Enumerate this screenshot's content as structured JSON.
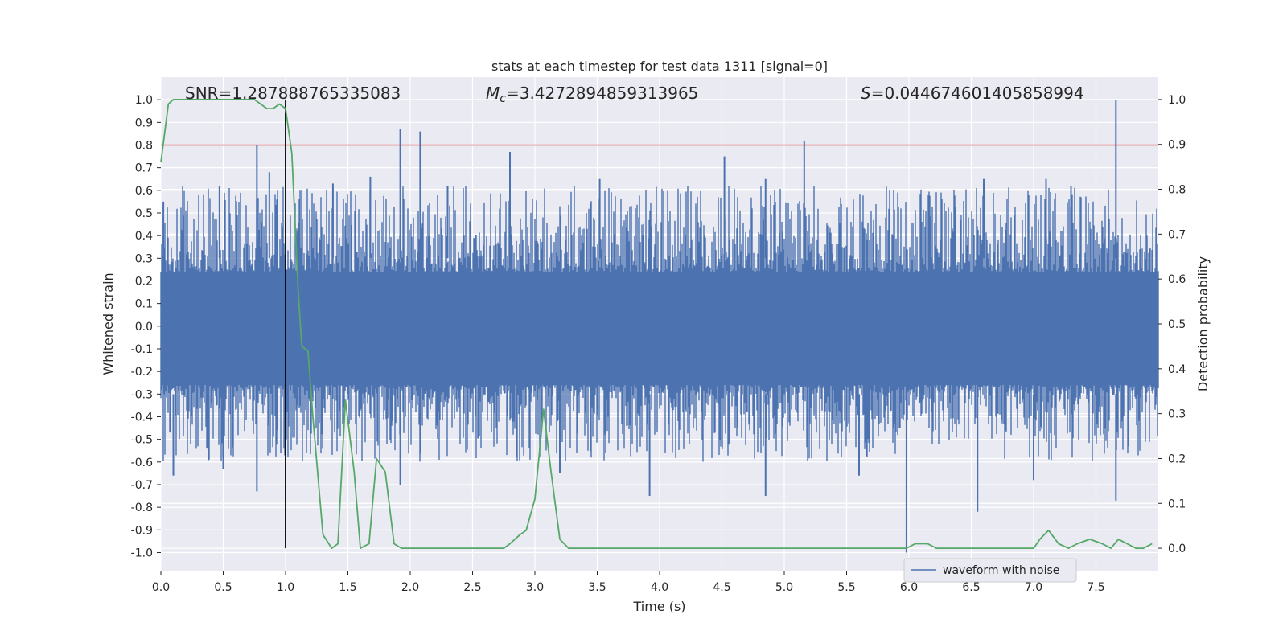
{
  "chart_data": {
    "type": "line",
    "title": "stats at each timestep for test data 1311 [signal=0]",
    "xlabel": "Time (s)",
    "ylabel_left": "Whitened strain",
    "ylabel_right": "Detection probability",
    "xlim": [
      0.0,
      8.0
    ],
    "ylim_left": [
      -1.08,
      1.1
    ],
    "ylim_right": [
      -0.05,
      1.05
    ],
    "grid": true,
    "xticks": [
      "0.0",
      "0.5",
      "1.0",
      "1.5",
      "2.0",
      "2.5",
      "3.0",
      "3.5",
      "4.0",
      "4.5",
      "5.0",
      "5.5",
      "6.0",
      "6.5",
      "7.0",
      "7.5"
    ],
    "yticks_left": [
      "1.0",
      "0.9",
      "0.8",
      "0.7",
      "0.6",
      "0.5",
      "0.4",
      "0.3",
      "0.2",
      "0.1",
      "0.0",
      "-0.1",
      "-0.2",
      "-0.3",
      "-0.4",
      "-0.5",
      "-0.6",
      "-0.7",
      "-0.8",
      "-0.9",
      "-1.0"
    ],
    "yticks_right": [
      "1.0",
      "0.9",
      "0.8",
      "0.7",
      "0.6",
      "0.5",
      "0.4",
      "0.3",
      "0.2",
      "0.1",
      "0.0"
    ],
    "annotations": {
      "snr": "SNR=1.287888765335083",
      "mc_symbol": "M",
      "mc_sub": "c",
      "mc_value": "=3.4272894859313965",
      "s_symbol": "S",
      "s_value": "=0.0446746014058589​94"
    },
    "threshold": {
      "name": "threshold",
      "axis": "left",
      "value": 0.8,
      "color": "#c44e52"
    },
    "vline": {
      "name": "marker",
      "x": 1.0,
      "color": "#000000"
    },
    "waveform": {
      "name": "waveform with noise",
      "color": "#4c72b0",
      "envelope_note": "dense whitened noise approximately within ±0.4 with spikes",
      "spikes_up": [
        [
          0.77,
          0.8
        ],
        [
          0.87,
          0.68
        ],
        [
          1.92,
          0.87
        ],
        [
          2.08,
          0.86
        ],
        [
          2.8,
          0.77
        ],
        [
          4.52,
          0.75
        ],
        [
          5.16,
          0.82
        ],
        [
          6.6,
          0.65
        ],
        [
          7.66,
          1.0
        ],
        [
          1.38,
          0.63
        ],
        [
          1.68,
          0.66
        ],
        [
          3.52,
          0.65
        ],
        [
          4.85,
          0.65
        ],
        [
          7.3,
          0.62
        ],
        [
          0.02,
          0.55
        ],
        [
          0.47,
          0.62
        ],
        [
          2.3,
          0.62
        ],
        [
          7.1,
          0.65
        ]
      ],
      "spikes_down": [
        [
          0.1,
          -0.66
        ],
        [
          0.77,
          -0.73
        ],
        [
          1.92,
          -0.7
        ],
        [
          3.92,
          -0.75
        ],
        [
          4.85,
          -0.75
        ],
        [
          5.98,
          -1.0
        ],
        [
          6.55,
          -0.82
        ],
        [
          7.66,
          -0.77
        ],
        [
          0.5,
          -0.63
        ],
        [
          3.2,
          -0.65
        ],
        [
          5.6,
          -0.66
        ],
        [
          7.0,
          -0.68
        ]
      ]
    },
    "probability": {
      "name": "detection probability",
      "axis": "right",
      "color": "#55a868",
      "x": [
        0.0,
        0.06,
        0.1,
        0.15,
        0.2,
        0.3,
        0.4,
        0.5,
        0.6,
        0.65,
        0.7,
        0.75,
        0.8,
        0.85,
        0.9,
        0.95,
        1.0,
        1.05,
        1.1,
        1.13,
        1.18,
        1.22,
        1.3,
        1.37,
        1.42,
        1.48,
        1.55,
        1.6,
        1.67,
        1.73,
        1.8,
        1.87,
        1.93,
        2.0,
        2.05,
        2.15,
        2.25,
        2.35,
        2.45,
        2.55,
        2.65,
        2.75,
        2.8,
        2.88,
        2.93,
        3.0,
        3.07,
        3.13,
        3.2,
        3.27,
        3.35,
        3.45,
        3.55,
        3.65,
        3.75,
        3.85,
        3.95,
        4.05,
        4.2,
        4.4,
        4.6,
        4.8,
        5.0,
        5.2,
        5.4,
        5.6,
        5.8,
        5.98,
        6.05,
        6.15,
        6.22,
        6.3,
        6.4,
        6.5,
        6.6,
        6.7,
        6.8,
        6.9,
        7.0,
        7.05,
        7.12,
        7.2,
        7.28,
        7.35,
        7.45,
        7.55,
        7.62,
        7.68,
        7.75,
        7.82,
        7.88,
        7.95
      ],
      "y": [
        0.86,
        0.99,
        1.0,
        1.0,
        1.0,
        1.0,
        1.0,
        1.0,
        1.0,
        1.0,
        1.0,
        1.0,
        0.99,
        0.98,
        0.98,
        0.99,
        0.98,
        0.88,
        0.58,
        0.45,
        0.44,
        0.29,
        0.03,
        0.0,
        0.01,
        0.33,
        0.17,
        0.0,
        0.01,
        0.2,
        0.17,
        0.01,
        0.0,
        0.0,
        0.0,
        0.0,
        0.0,
        0.0,
        0.0,
        0.0,
        0.0,
        0.0,
        0.01,
        0.03,
        0.04,
        0.11,
        0.31,
        0.17,
        0.02,
        0.0,
        0.0,
        0.0,
        0.0,
        0.0,
        0.0,
        0.0,
        0.0,
        0.0,
        0.0,
        0.0,
        0.0,
        0.0,
        0.0,
        0.0,
        0.0,
        0.0,
        0.0,
        0.0,
        0.01,
        0.01,
        0.0,
        0.0,
        0.0,
        0.0,
        0.0,
        0.0,
        0.0,
        0.0,
        0.0,
        0.02,
        0.04,
        0.01,
        0.0,
        0.01,
        0.02,
        0.01,
        0.0,
        0.02,
        0.01,
        0.0,
        0.0,
        0.01
      ]
    },
    "legend": {
      "location": "lower right",
      "label": "waveform with noise"
    }
  }
}
